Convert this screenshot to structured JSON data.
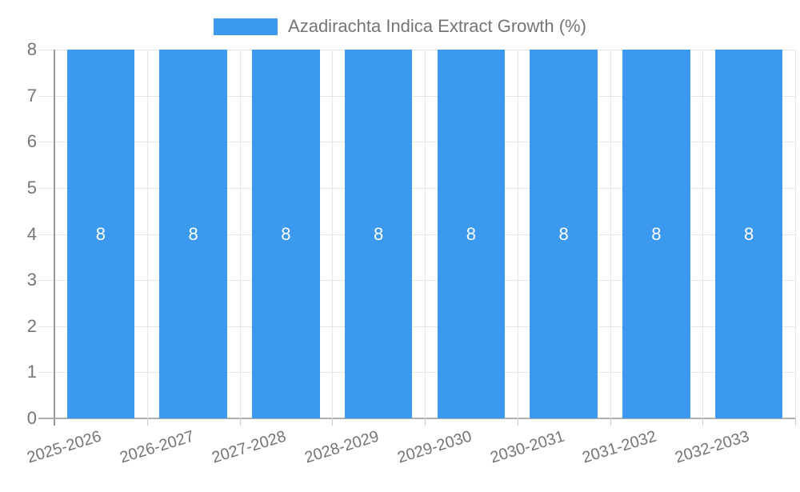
{
  "chart_data": {
    "type": "bar",
    "title": "Azadirachta Indica Extract Growth (%)",
    "legend": {
      "label": "Azadirachta Indica Extract Growth (%)",
      "position": "top"
    },
    "categories": [
      "2025-2026",
      "2026-2027",
      "2027-2028",
      "2028-2029",
      "2029-2030",
      "2030-2031",
      "2031-2032",
      "2032-2033"
    ],
    "series": [
      {
        "name": "Azadirachta Indica Extract Growth (%)",
        "values": [
          8,
          8,
          8,
          8,
          8,
          8,
          8,
          8
        ]
      }
    ],
    "bar_value_labels": [
      "8",
      "8",
      "8",
      "8",
      "8",
      "8",
      "8",
      "8"
    ],
    "xlabel": "",
    "ylabel": "",
    "ylim": [
      0,
      8
    ],
    "yticks": [
      0,
      1,
      2,
      3,
      4,
      5,
      6,
      7,
      8
    ],
    "grid": true,
    "x_labels_rotated": true,
    "colors": {
      "bar": "#3B99EF",
      "axis_text": "#757575",
      "legend_text": "#757575",
      "gridline": "#E6E6E6",
      "x_axis_line": "#B0B0B0",
      "y_axis_line": "#999999",
      "tick_mark": "#CCCCCC",
      "bar_value_text": "#FFFFFF",
      "background": "#FFFFFF"
    }
  }
}
